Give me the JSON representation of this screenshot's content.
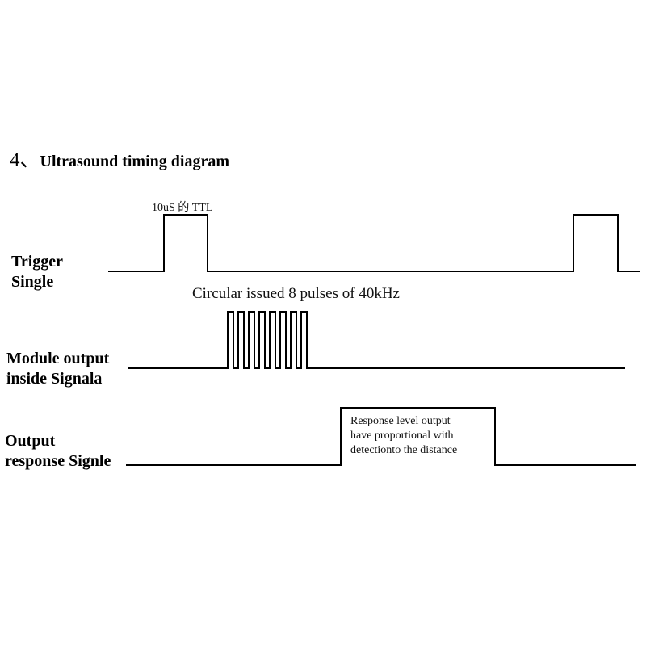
{
  "title": {
    "number": "4、",
    "text": "Ultrasound timing diagram"
  },
  "signals": [
    {
      "label_line1": "Trigger",
      "label_line2": "Single"
    },
    {
      "label_line1": "Module output",
      "label_line2": "inside Signala"
    },
    {
      "label_line1": "Output",
      "label_line2": "response Signle"
    }
  ],
  "annotations": {
    "trigger_pulse": "10uS 的 TTL",
    "burst": "Circular issued 8 pulses of 40kHz",
    "response_line1": "Response level output",
    "response_line2": "have proportional with",
    "response_line3": "detectionto the distance"
  }
}
